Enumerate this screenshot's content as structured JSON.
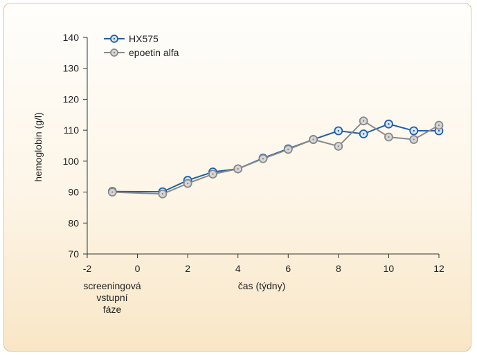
{
  "chart_data": {
    "type": "line",
    "ylabel": "hemoglobin (g/l)",
    "xlabel": "čas (týdny)",
    "x_extra_label": [
      "screeningová",
      "vstupní",
      "fáze"
    ],
    "xlim": [
      -2,
      12
    ],
    "ylim": [
      70,
      140
    ],
    "x_ticks": [
      -2,
      0,
      2,
      4,
      6,
      8,
      10,
      12
    ],
    "y_ticks": [
      70,
      80,
      90,
      100,
      110,
      120,
      130,
      140
    ],
    "grid": false,
    "legend_position": "top-left",
    "series": [
      {
        "name": "HX575",
        "color": "#1f5fa8",
        "marker_fill": "#d6e6f5",
        "x": [
          -1,
          1,
          2,
          3,
          4,
          5,
          6,
          7,
          8,
          9,
          10,
          11,
          12
        ],
        "y": [
          90.2,
          90.1,
          93.8,
          96.5,
          97.5,
          101,
          104,
          107,
          109.8,
          108.8,
          112,
          109.8,
          109.8
        ]
      },
      {
        "name": "epoetin alfa",
        "color": "#8a8a8a",
        "marker_fill": "#d6d6d6",
        "x": [
          -1,
          1,
          2,
          3,
          4,
          5,
          6,
          7,
          8,
          9,
          10,
          11,
          12
        ],
        "y": [
          90,
          89.4,
          92.8,
          95.8,
          97.5,
          100.8,
          103.8,
          107,
          104.8,
          113,
          107.8,
          107,
          111.6
        ]
      }
    ]
  }
}
